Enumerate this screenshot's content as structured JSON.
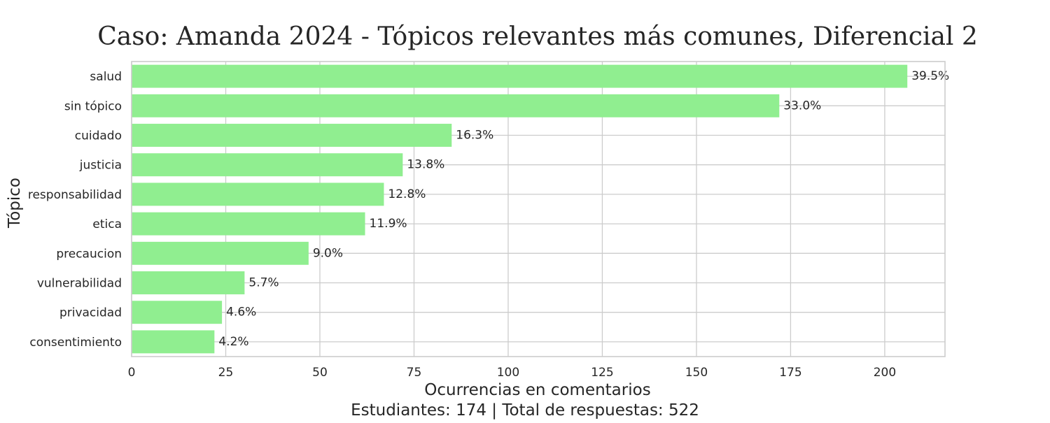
{
  "chart_data": {
    "type": "bar",
    "orientation": "horizontal",
    "title": "Caso: Amanda 2024 - Tópicos relevantes más comunes, Diferencial 2",
    "xlabel": "Ocurrencias en comentarios",
    "ylabel": "Tópico",
    "footnote": "Estudiantes: 174 | Total de respuestas: 522",
    "categories": [
      "salud",
      "sin tópico",
      "cuidado",
      "justicia",
      "responsabilidad",
      "etica",
      "precaucion",
      "vulnerabilidad",
      "privacidad",
      "consentimiento"
    ],
    "values": [
      206,
      172,
      85,
      72,
      67,
      62,
      47,
      30,
      24,
      22
    ],
    "data_labels": [
      "39.5%",
      "33.0%",
      "16.3%",
      "13.8%",
      "12.8%",
      "11.9%",
      "9.0%",
      "5.7%",
      "4.6%",
      "4.2%"
    ],
    "xlim": [
      0,
      216
    ],
    "xticks": [
      0,
      25,
      50,
      75,
      100,
      125,
      150,
      175,
      200
    ],
    "xtick_labels": [
      "0",
      "25",
      "50",
      "75",
      "100",
      "125",
      "150",
      "175",
      "200"
    ],
    "grid": true,
    "colors": {
      "bar": "#90ee90",
      "grid": "#cccccc",
      "text": "#262626",
      "frame": "#cccccc"
    }
  }
}
